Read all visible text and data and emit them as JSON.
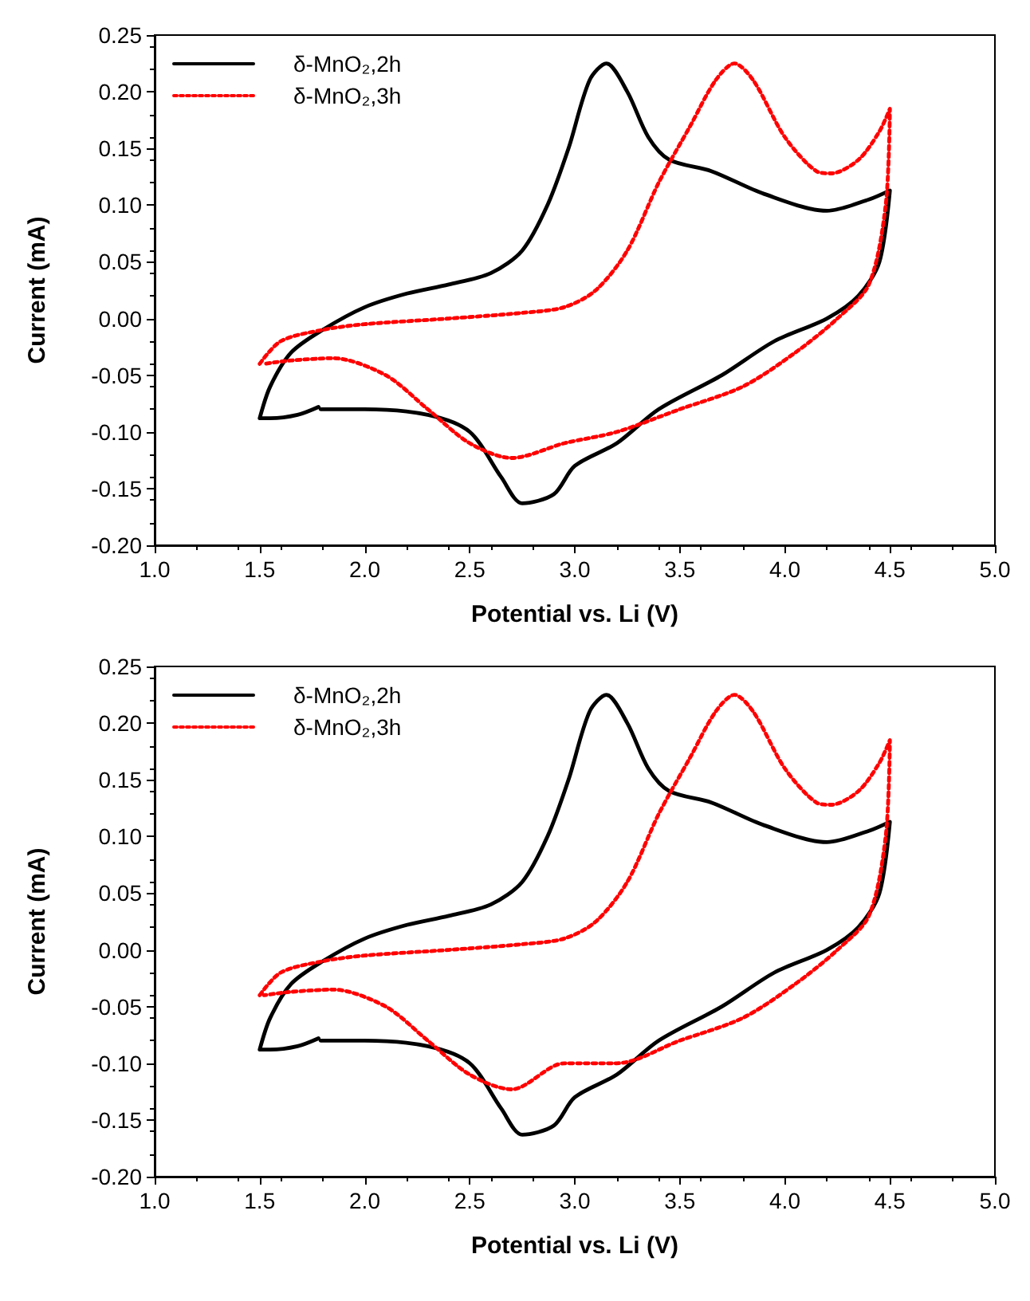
{
  "chart_data": [
    {
      "type": "line",
      "xlabel": "Potential vs. Li (V)",
      "ylabel": "Current (mA)",
      "xlim": [
        1.0,
        5.0
      ],
      "xticks": [
        {
          "value": 1,
          "label": "1.0"
        },
        {
          "value": 1.5,
          "label": "1.5"
        },
        {
          "value": 2,
          "label": "2.0"
        },
        {
          "value": 2.5,
          "label": "2.5"
        },
        {
          "value": 3,
          "label": "3.0"
        },
        {
          "value": 3.5,
          "label": "3.5"
        },
        {
          "value": 4,
          "label": "4.0"
        },
        {
          "value": 4.5,
          "label": "4.5"
        },
        {
          "value": 5,
          "label": "5.0"
        }
      ],
      "ylim": [
        -0.2,
        0.25
      ],
      "yticks": [
        {
          "value": -0.2,
          "label": "-0.20"
        },
        {
          "value": -0.15,
          "label": "-0.15"
        },
        {
          "value": -0.1,
          "label": "-0.10"
        },
        {
          "value": -0.05,
          "label": "-0.05"
        },
        {
          "value": 0,
          "label": "0.00"
        },
        {
          "value": 0.05,
          "label": "0.05"
        },
        {
          "value": 0.1,
          "label": "0.10"
        },
        {
          "value": 0.15,
          "label": "0.15"
        },
        {
          "value": 0.2,
          "label": "0.20"
        },
        {
          "value": 0.25,
          "label": "0.25"
        }
      ],
      "grid": false,
      "legend": "top left",
      "marker": "none",
      "series": [
        {
          "name": "δ-MnO₂,2h",
          "color": "#000000",
          "line_style": "solid",
          "x": [
            1.79,
            2.0,
            2.3,
            2.5,
            2.65,
            2.75,
            2.9,
            3.0,
            3.2,
            3.4,
            3.7,
            3.95,
            4.2,
            4.35,
            4.45,
            4.5,
            4.4,
            4.2,
            3.9,
            3.65,
            3.45,
            3.35,
            3.25,
            3.15,
            3.07,
            2.97,
            2.87,
            2.75,
            2.6,
            2.4,
            2.2,
            2.0,
            1.8,
            1.65,
            1.55,
            1.5,
            1.55,
            1.68,
            1.78
          ],
          "values": [
            -0.08,
            -0.08,
            -0.085,
            -0.1,
            -0.14,
            -0.163,
            -0.155,
            -0.13,
            -0.11,
            -0.08,
            -0.05,
            -0.02,
            0.0,
            0.02,
            0.05,
            0.113,
            0.105,
            0.095,
            0.11,
            0.13,
            0.14,
            0.16,
            0.2,
            0.225,
            0.21,
            0.15,
            0.1,
            0.06,
            0.04,
            0.03,
            0.022,
            0.01,
            -0.01,
            -0.03,
            -0.06,
            -0.088,
            -0.088,
            -0.085,
            -0.078
          ]
        },
        {
          "name": "δ-MnO₂,3h",
          "color": "#ff0000",
          "line_style": "dotted",
          "x": [
            1.5,
            1.6,
            1.8,
            2.0,
            2.4,
            2.75,
            2.95,
            3.1,
            3.25,
            3.4,
            3.55,
            3.67,
            3.76,
            3.85,
            4.0,
            4.15,
            4.22,
            4.35,
            4.45,
            4.5,
            4.48,
            4.4,
            4.25,
            4.05,
            3.8,
            3.5,
            3.2,
            2.95,
            2.7,
            2.5,
            2.3,
            2.1,
            1.85,
            1.65,
            1.52
          ],
          "values": [
            -0.04,
            -0.02,
            -0.01,
            -0.005,
            0.0,
            0.005,
            0.01,
            0.025,
            0.06,
            0.12,
            0.17,
            0.21,
            0.225,
            0.21,
            0.16,
            0.13,
            0.128,
            0.14,
            0.165,
            0.185,
            0.1,
            0.03,
            0.0,
            -0.03,
            -0.06,
            -0.08,
            -0.1,
            -0.11,
            -0.123,
            -0.11,
            -0.08,
            -0.05,
            -0.035,
            -0.037,
            -0.04
          ]
        }
      ]
    },
    {
      "type": "line",
      "xlabel": "Potential vs. Li (V)",
      "ylabel": "Current (mA)",
      "xlim": [
        1.0,
        5.0
      ],
      "xticks": [
        {
          "value": 1,
          "label": "1.0"
        },
        {
          "value": 1.5,
          "label": "1.5"
        },
        {
          "value": 2,
          "label": "2.0"
        },
        {
          "value": 2.5,
          "label": "2.5"
        },
        {
          "value": 3,
          "label": "3.0"
        },
        {
          "value": 3.5,
          "label": "3.5"
        },
        {
          "value": 4,
          "label": "4.0"
        },
        {
          "value": 4.5,
          "label": "4.5"
        },
        {
          "value": 5,
          "label": "5.0"
        }
      ],
      "ylim": [
        -0.2,
        0.25
      ],
      "yticks": [
        {
          "value": -0.2,
          "label": "-0.20"
        },
        {
          "value": -0.15,
          "label": "-0.15"
        },
        {
          "value": -0.1,
          "label": "-0.10"
        },
        {
          "value": -0.05,
          "label": "-0.05"
        },
        {
          "value": 0,
          "label": "0.00"
        },
        {
          "value": 0.05,
          "label": "0.05"
        },
        {
          "value": 0.1,
          "label": "0.10"
        },
        {
          "value": 0.15,
          "label": "0.15"
        },
        {
          "value": 0.2,
          "label": "0.20"
        },
        {
          "value": 0.25,
          "label": "0.25"
        }
      ],
      "grid": false,
      "legend": "top left",
      "marker": "none",
      "series": [
        {
          "name": "δ-MnO₂,2h",
          "color": "#000000",
          "line_style": "solid",
          "x": [
            1.79,
            2.0,
            2.3,
            2.5,
            2.65,
            2.75,
            2.9,
            3.0,
            3.2,
            3.4,
            3.7,
            3.95,
            4.2,
            4.35,
            4.45,
            4.5,
            4.4,
            4.2,
            3.9,
            3.65,
            3.45,
            3.35,
            3.25,
            3.15,
            3.07,
            2.97,
            2.87,
            2.75,
            2.6,
            2.4,
            2.2,
            2.0,
            1.8,
            1.65,
            1.55,
            1.5,
            1.55,
            1.68,
            1.78
          ],
          "values": [
            -0.08,
            -0.08,
            -0.085,
            -0.1,
            -0.14,
            -0.163,
            -0.155,
            -0.13,
            -0.11,
            -0.08,
            -0.05,
            -0.02,
            0.0,
            0.02,
            0.05,
            0.113,
            0.105,
            0.095,
            0.11,
            0.13,
            0.14,
            0.16,
            0.2,
            0.225,
            0.21,
            0.15,
            0.1,
            0.06,
            0.04,
            0.03,
            0.022,
            0.01,
            -0.01,
            -0.03,
            -0.06,
            -0.088,
            -0.088,
            -0.085,
            -0.078
          ]
        },
        {
          "name": "δ-MnO₂,3h",
          "color": "#ff0000",
          "line_style": "dotted",
          "x": [
            1.5,
            1.6,
            1.8,
            2.0,
            2.4,
            2.75,
            2.95,
            3.1,
            3.25,
            3.4,
            3.55,
            3.67,
            3.76,
            3.85,
            4.0,
            4.15,
            4.22,
            4.35,
            4.45,
            4.5,
            4.48,
            4.4,
            4.25,
            4.05,
            3.8,
            3.5,
            3.2,
            2.95,
            2.7,
            2.5,
            2.3,
            2.1,
            1.85,
            1.65,
            1.52
          ],
          "values": [
            -0.04,
            -0.02,
            -0.01,
            -0.005,
            0.0,
            0.005,
            0.01,
            0.025,
            0.06,
            0.12,
            0.17,
            0.21,
            0.225,
            0.21,
            0.16,
            0.13,
            0.128,
            0.14,
            0.165,
            0.185,
            0.1,
            0.03,
            0.0,
            -0.03,
            -0.06,
            -0.08,
            -0.1,
            -0.1,
            -0.123,
            -0.11,
            -0.08,
            -0.05,
            -0.035,
            -0.037,
            -0.04
          ]
        }
      ]
    }
  ]
}
